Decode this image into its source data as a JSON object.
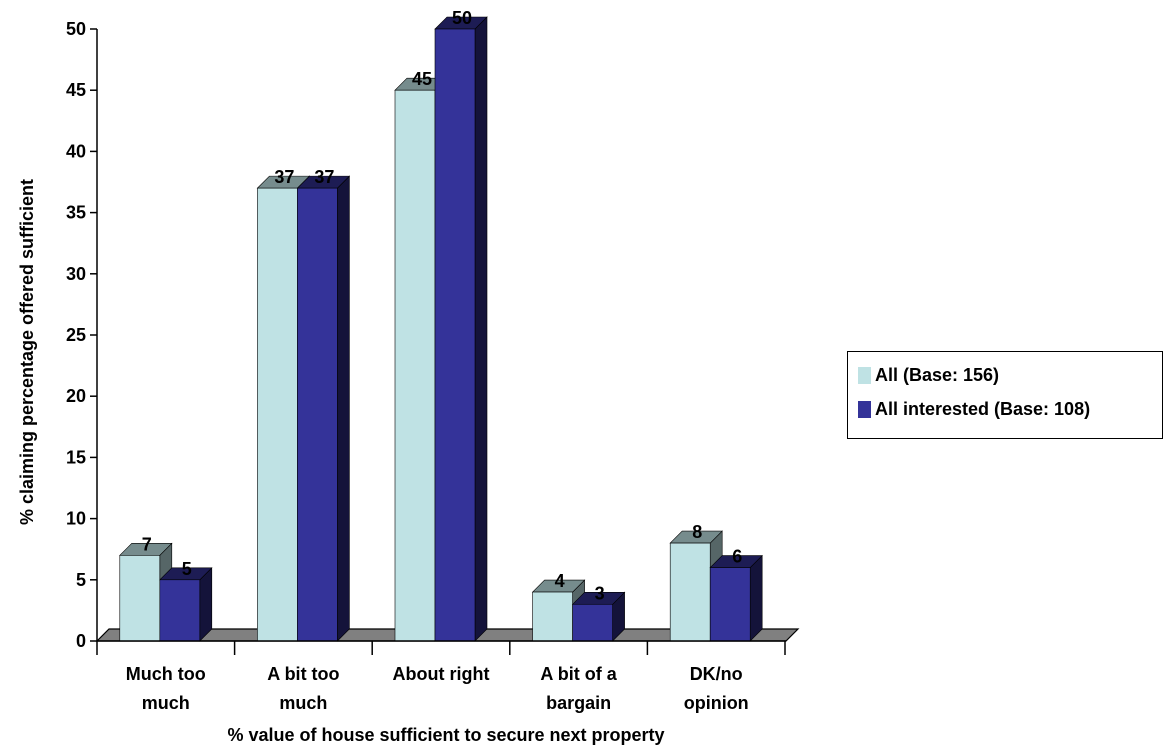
{
  "chart_data": {
    "type": "bar",
    "categories": [
      [
        "Much too",
        "much"
      ],
      [
        "A bit too",
        "much"
      ],
      [
        "About right"
      ],
      [
        "A bit of a",
        "bargain"
      ],
      [
        "DK/no",
        "opinion"
      ]
    ],
    "series": [
      {
        "name": "All (Base: 156)",
        "values": [
          7,
          37,
          45,
          4,
          8
        ],
        "color": "#bfe2e4"
      },
      {
        "name": "All interested (Base: 108)",
        "values": [
          5,
          37,
          50,
          3,
          6
        ],
        "color": "#343399"
      }
    ],
    "xlabel": "% value of house sufficient to secure next property",
    "ylabel": "% claiming percentage offered sufficient",
    "ylim": [
      0,
      50
    ],
    "yticks": [
      0,
      5,
      10,
      15,
      20,
      25,
      30,
      35,
      40,
      45,
      50
    ],
    "legend_position": "right",
    "floor_color": "#808080"
  }
}
